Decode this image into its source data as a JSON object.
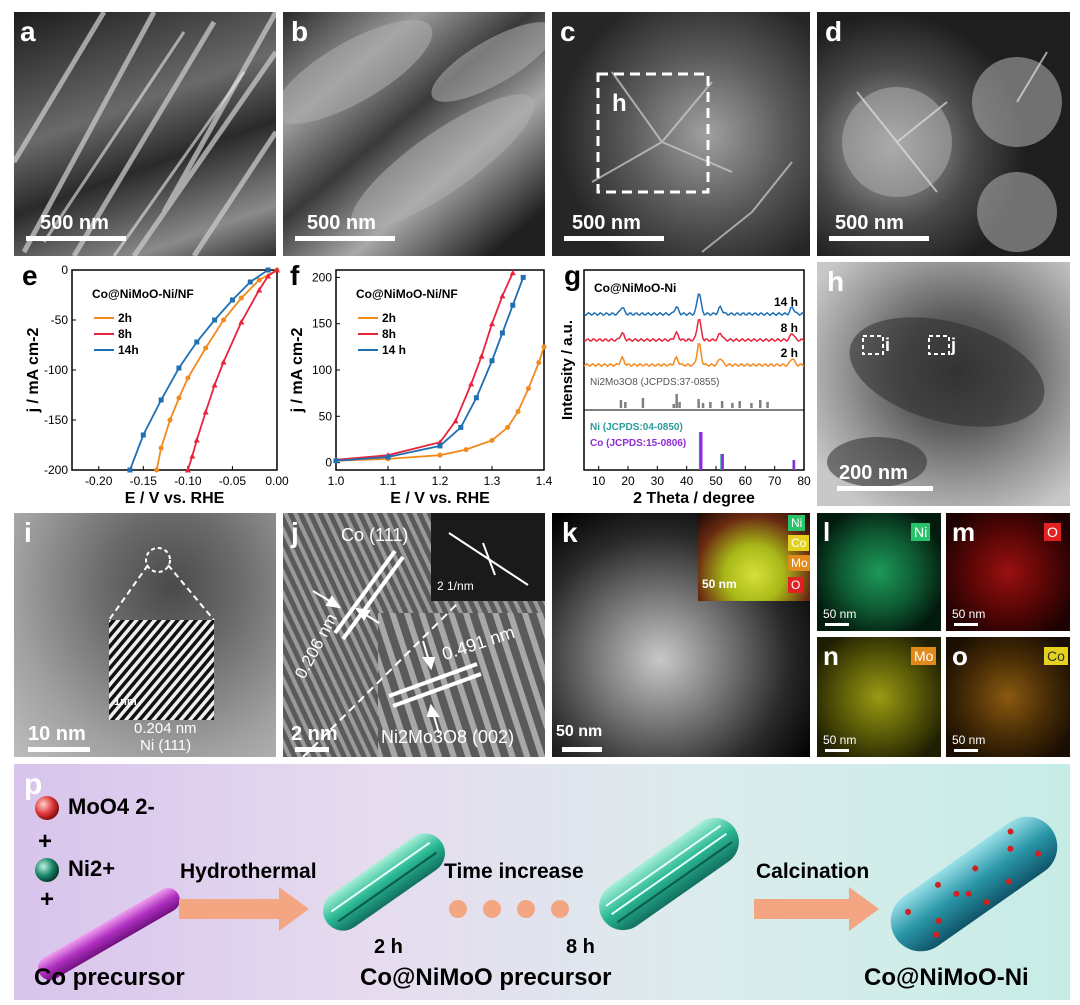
{
  "panels": {
    "a": {
      "label": "a",
      "scale": "500 nm"
    },
    "b": {
      "label": "b",
      "scale": "500 nm"
    },
    "c": {
      "label": "c",
      "scale": "500 nm",
      "box_label": "h"
    },
    "d": {
      "label": "d",
      "scale": "500 nm"
    },
    "h": {
      "label": "h",
      "scale": "200 nm",
      "box_i": "i",
      "box_j": "j"
    },
    "i": {
      "label": "i",
      "scale": "10 nm",
      "inset_scale": "1nm",
      "d_spacing": "0.204 nm",
      "plane": "Ni (111)"
    },
    "j": {
      "label": "j",
      "scale": "2 nm",
      "fft_scale": "2 1/nm",
      "co_plane": "Co (111)",
      "d1": "0.206 nm",
      "d2": "0.491 nm",
      "nimo_plane": "Ni2Mo3O8 (002)"
    },
    "k": {
      "label": "k",
      "scale": "50 nm",
      "inset_scale": "50 nm",
      "tags": [
        "Ni",
        "Co",
        "Mo",
        "O"
      ]
    },
    "l": {
      "label": "l",
      "scale": "50 nm",
      "tag": "Ni"
    },
    "m": {
      "label": "m",
      "scale": "50 nm",
      "tag": "O"
    },
    "n": {
      "label": "n",
      "scale": "50 nm",
      "tag": "Mo"
    },
    "o": {
      "label": "o",
      "scale": "50 nm",
      "tag": "Co"
    }
  },
  "colors": {
    "orange": "#f28a1e",
    "red": "#e8243c",
    "blue": "#1f6fb2",
    "teal": "#2a9d9b",
    "purple": "#8e2bd6",
    "gray": "#808080"
  },
  "chart_data": [
    {
      "id": "e",
      "type": "line",
      "label": "e",
      "title": "Co@NiMoO-Ni/NF",
      "xlabel": "E / V vs. RHE",
      "ylabel": "j / mA cm-2",
      "xlim": [
        -0.23,
        0.0
      ],
      "ylim": [
        -200,
        0
      ],
      "xticks": [
        "-0.20",
        "-0.15",
        "-0.10",
        "-0.05",
        "0.00"
      ],
      "yticks": [
        "0",
        "-50",
        "-100",
        "-150",
        "-200"
      ],
      "series": [
        {
          "name": "2h",
          "color": "#f28a1e",
          "x": [
            0.0,
            -0.02,
            -0.04,
            -0.06,
            -0.08,
            -0.1,
            -0.11,
            -0.12,
            -0.13,
            -0.135
          ],
          "y": [
            0,
            -10,
            -28,
            -50,
            -78,
            -108,
            -128,
            -150,
            -178,
            -200
          ]
        },
        {
          "name": "8h",
          "color": "#e8243c",
          "x": [
            0.0,
            -0.01,
            -0.02,
            -0.04,
            -0.06,
            -0.07,
            -0.08,
            -0.09,
            -0.095,
            -0.1
          ],
          "y": [
            0,
            -6,
            -20,
            -52,
            -92,
            -115,
            -142,
            -170,
            -186,
            -200
          ]
        },
        {
          "name": "14h",
          "color": "#1f6fb2",
          "x": [
            -0.01,
            -0.03,
            -0.05,
            -0.07,
            -0.09,
            -0.11,
            -0.13,
            -0.15,
            -0.165
          ],
          "y": [
            0,
            -12,
            -30,
            -50,
            -72,
            -98,
            -130,
            -165,
            -200
          ]
        }
      ]
    },
    {
      "id": "f",
      "type": "line",
      "label": "f",
      "title": "Co@NiMoO-Ni/NF",
      "xlabel": "E / V vs. RHE",
      "ylabel": "j / mA cm-2",
      "xlim": [
        1.0,
        1.4
      ],
      "ylim": [
        -8,
        208
      ],
      "xticks": [
        "1.0",
        "1.1",
        "1.2",
        "1.3",
        "1.4"
      ],
      "yticks": [
        "0",
        "50",
        "100",
        "150",
        "200"
      ],
      "series": [
        {
          "name": "2h",
          "color": "#f28a1e",
          "x": [
            1.0,
            1.1,
            1.2,
            1.25,
            1.3,
            1.33,
            1.35,
            1.37,
            1.39,
            1.4
          ],
          "y": [
            2,
            4,
            8,
            14,
            24,
            38,
            55,
            80,
            108,
            125
          ]
        },
        {
          "name": "8h",
          "color": "#e8243c",
          "x": [
            1.0,
            1.1,
            1.2,
            1.23,
            1.26,
            1.28,
            1.3,
            1.32,
            1.34
          ],
          "y": [
            3,
            8,
            22,
            45,
            85,
            115,
            150,
            180,
            205
          ]
        },
        {
          "name": "14 h",
          "color": "#1f6fb2",
          "x": [
            1.0,
            1.1,
            1.2,
            1.24,
            1.27,
            1.3,
            1.32,
            1.34,
            1.36
          ],
          "y": [
            2,
            6,
            18,
            38,
            70,
            110,
            140,
            170,
            200
          ]
        }
      ]
    },
    {
      "id": "g",
      "type": "line",
      "label": "g",
      "title": "Co@NiMoO-Ni",
      "xlabel": "2 Theta / degree",
      "ylabel": "Intensity / a.u.",
      "xlim": [
        5,
        80
      ],
      "xticks": [
        "10",
        "20",
        "30",
        "40",
        "50",
        "60",
        "70",
        "80"
      ],
      "series": [
        {
          "name": "14 h",
          "color": "#1f6fb2"
        },
        {
          "name": "8 h",
          "color": "#e8243c"
        },
        {
          "name": "2 h",
          "color": "#f28a1e"
        }
      ],
      "peaks": [
        18,
        36.5,
        44.2,
        51.5,
        76
      ],
      "references": [
        {
          "name": "Ni2Mo3O8 (JCPDS:37-0855)",
          "color": "#808080",
          "lines": [
            17.5,
            19,
            25,
            35.5,
            36.5,
            37.5,
            44,
            45.5,
            48,
            52,
            55.5,
            58,
            62,
            65,
            67.5
          ]
        },
        {
          "name": "Ni (JCPDS:04-0850)",
          "color": "#2a9d9b",
          "lines": [
            44.5,
            51.8,
            76.4
          ]
        },
        {
          "name": "Co (JCPDS:15-0806)",
          "color": "#8e2bd6",
          "lines": [
            44.2,
            51.5,
            75.8
          ]
        }
      ]
    }
  ],
  "scheme": {
    "label": "p",
    "moo4": "MoO4 2-",
    "plus1": "+",
    "ni": "Ni2+",
    "plus2": "+",
    "co_precursor": "Co precursor",
    "hydrothermal": "Hydrothermal",
    "time_increase": "Time increase",
    "calcination": "Calcination",
    "t2h": "2 h",
    "t8h": "8 h",
    "mid_label": "Co@NiMoO precursor",
    "final_label": "Co@NiMoO-Ni"
  }
}
